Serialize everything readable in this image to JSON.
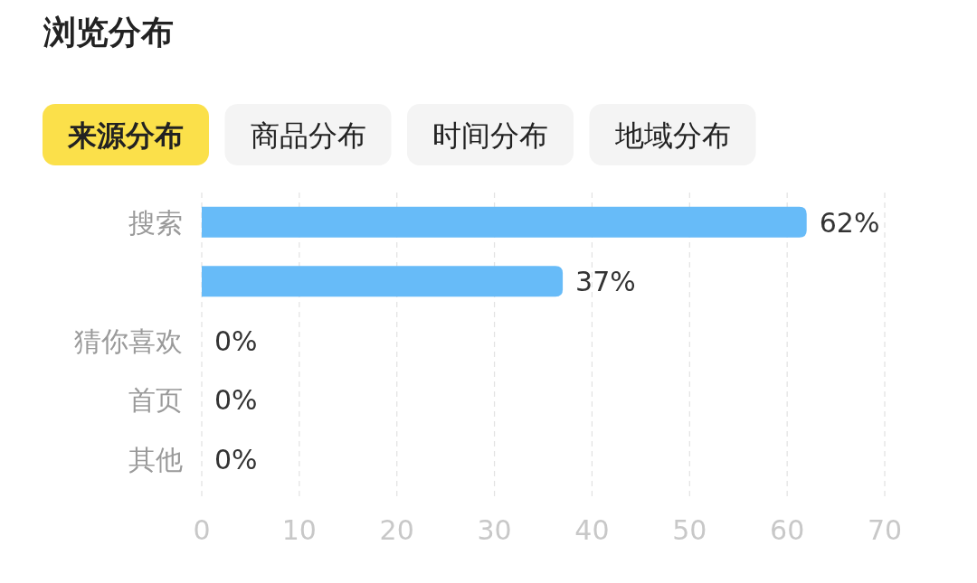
{
  "chart_data": {
    "type": "bar",
    "orientation": "horizontal",
    "title": "浏览分布",
    "annotations": [
      "来源分布",
      "商品分布",
      "时间分布",
      "地域分布"
    ],
    "categories": [
      "搜索",
      null,
      "猜你喜欢",
      "首页",
      "其他"
    ],
    "values": [
      62,
      37,
      0,
      0,
      0
    ],
    "value_labels": [
      "62%",
      "37%",
      "0%",
      "0%",
      "0%"
    ],
    "color": "#67bbf8",
    "xlim": [
      0,
      70
    ],
    "xticks": [
      0,
      10,
      20,
      30,
      40,
      50,
      60,
      70
    ],
    "grid": "x"
  }
}
